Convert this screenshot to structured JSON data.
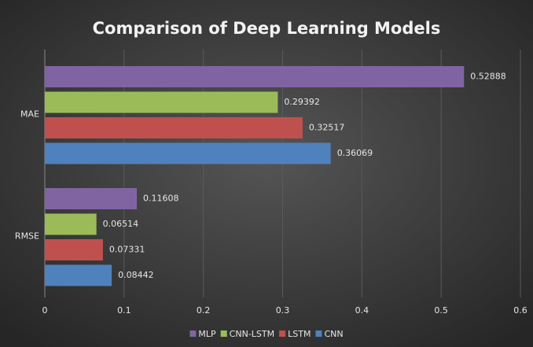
{
  "chart_data": {
    "type": "hbar",
    "title": "Comparison of Deep Learning Models",
    "categories": [
      "MAE",
      "RMSE"
    ],
    "series": [
      {
        "name": "MLP",
        "color": "#8064a2",
        "values": [
          0.52888,
          0.11608
        ]
      },
      {
        "name": "CNN-LSTM",
        "color": "#9bbb59",
        "values": [
          0.29392,
          0.06514
        ]
      },
      {
        "name": "LSTM",
        "color": "#c0504d",
        "values": [
          0.32517,
          0.07331
        ]
      },
      {
        "name": "CNN",
        "color": "#4f81bd",
        "values": [
          0.36069,
          0.08442
        ]
      }
    ],
    "xlim": [
      0,
      0.6
    ],
    "xticks": [
      0,
      0.1,
      0.2,
      0.3,
      0.4,
      0.5,
      0.6
    ],
    "grid": true,
    "legend": "bottom"
  }
}
